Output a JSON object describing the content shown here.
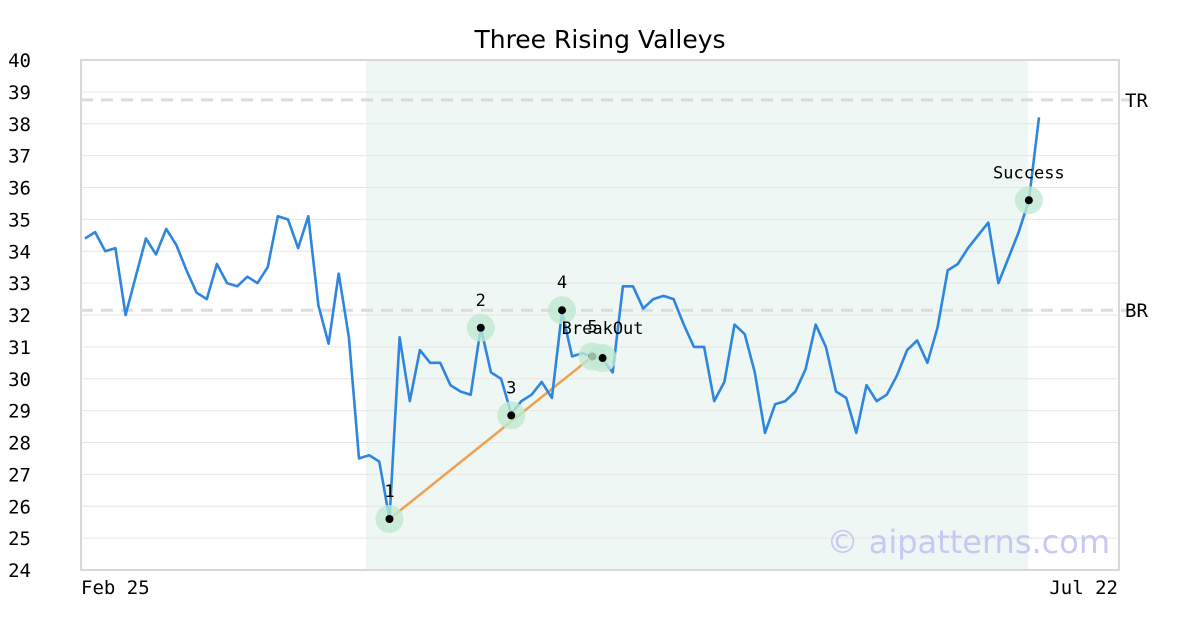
{
  "chart_data": {
    "type": "line",
    "title": "Three Rising Valleys",
    "xlabel": "",
    "ylabel": "",
    "ylim": [
      24,
      40
    ],
    "y_ticks": [
      "24",
      "25",
      "26",
      "27",
      "28",
      "29",
      "30",
      "31",
      "32",
      "33",
      "34",
      "35",
      "36",
      "37",
      "38",
      "39",
      "40"
    ],
    "x_tick_labels": [
      "Feb 25",
      "Jul 22"
    ],
    "grid": true,
    "series": [
      {
        "color": "#2e86de",
        "values": [
          34.4,
          34.6,
          34.0,
          34.1,
          32.0,
          33.2,
          34.4,
          33.9,
          34.7,
          34.2,
          33.4,
          32.7,
          32.5,
          33.6,
          33.0,
          32.9,
          33.2,
          33.0,
          33.5,
          35.1,
          35.0,
          34.1,
          35.1,
          32.3,
          31.1,
          33.3,
          31.3,
          27.5,
          27.6,
          27.4,
          25.6,
          31.3,
          29.3,
          30.9,
          30.5,
          30.5,
          29.8,
          29.6,
          29.5,
          31.6,
          30.2,
          30.0,
          28.9,
          29.3,
          29.5,
          29.9,
          29.4,
          32.1,
          30.7,
          30.8,
          30.7,
          30.6,
          30.2,
          32.9,
          32.9,
          32.2,
          32.5,
          32.6,
          32.5,
          31.7,
          31.0,
          31.0,
          29.3,
          29.9,
          31.7,
          31.4,
          30.2,
          28.3,
          29.2,
          29.3,
          29.6,
          30.3,
          31.7,
          31.0,
          29.6,
          29.4,
          28.3,
          29.8,
          29.3,
          29.5,
          30.1,
          30.9,
          31.2,
          30.5,
          31.6,
          33.4,
          33.6,
          34.1,
          34.5,
          34.9,
          33.0,
          33.8,
          34.6,
          35.6,
          38.2
        ]
      }
    ],
    "shaded_region_index": [
      28,
      93
    ],
    "levels": [
      {
        "label": "TR",
        "value": 38.75
      },
      {
        "label": "BR",
        "value": 32.15
      }
    ],
    "pattern_points": [
      {
        "label": "1",
        "index": 30,
        "value": 25.6
      },
      {
        "label": "2",
        "index": 39,
        "value": 31.6
      },
      {
        "label": "3",
        "index": 42,
        "value": 28.85
      },
      {
        "label": "4",
        "index": 47,
        "value": 32.15
      },
      {
        "label": "5",
        "index": 50,
        "value": 30.7
      },
      {
        "label": "BreakOut",
        "index": 51,
        "value": 30.65
      },
      {
        "label": "Success",
        "index": 93,
        "value": 35.6
      }
    ],
    "trend_line": {
      "from_index": 30,
      "from_value": 25.6,
      "to_index": 50,
      "to_value": 30.7,
      "color": "#f0a050"
    }
  },
  "watermark": "© aipatterns.com"
}
